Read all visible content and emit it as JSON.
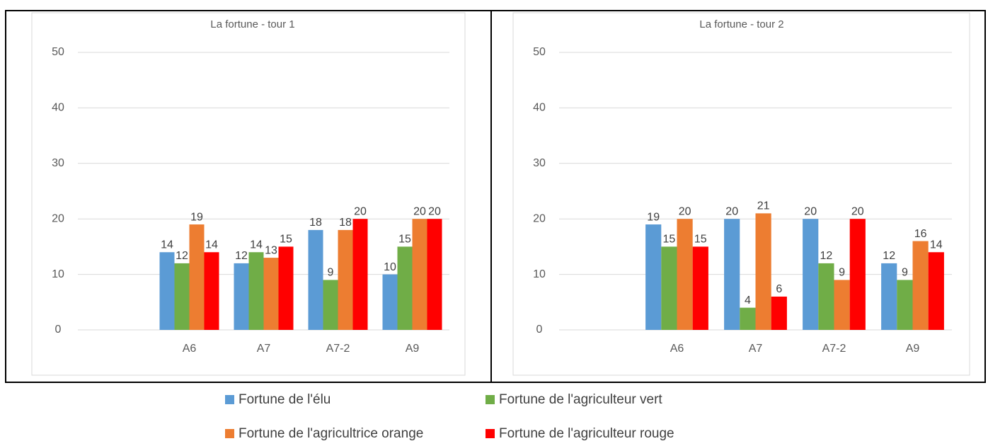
{
  "chart_data": [
    {
      "type": "bar",
      "title": "La fortune - tour 1",
      "categories": [
        null,
        "A6",
        "A7",
        "A7-2",
        "A9"
      ],
      "series": [
        {
          "name": "Fortune de l'élu",
          "color": "#5b9bd5",
          "values": [
            null,
            14,
            12,
            18,
            10
          ]
        },
        {
          "name": "Fortune de l'agriculteur vert",
          "color": "#70ad47",
          "values": [
            null,
            12,
            14,
            9,
            15
          ]
        },
        {
          "name": "Fortune de l'agricultrice orange",
          "color": "#ed7d31",
          "values": [
            null,
            19,
            13,
            18,
            20
          ]
        },
        {
          "name": "Fortune de l'agriculteur rouge",
          "color": "#ff0000",
          "values": [
            null,
            14,
            15,
            20,
            20
          ]
        }
      ],
      "ylim": [
        0,
        50
      ],
      "yticks": [
        0,
        10,
        20,
        30,
        40,
        50
      ],
      "grid": true
    },
    {
      "type": "bar",
      "title": "La fortune - tour 2",
      "categories": [
        null,
        "A6",
        "A7",
        "A7-2",
        "A9"
      ],
      "series": [
        {
          "color": "#5b9bd5",
          "values": [
            null,
            19,
            20,
            20,
            12
          ]
        },
        {
          "color": "#70ad47",
          "values": [
            null,
            15,
            4,
            12,
            9
          ]
        },
        {
          "color": "#ed7d31",
          "values": [
            null,
            20,
            21,
            9,
            16
          ]
        },
        {
          "color": "#ff0000",
          "values": [
            null,
            15,
            6,
            20,
            14
          ]
        }
      ],
      "ylim": [
        0,
        50
      ],
      "yticks": [
        0,
        10,
        20,
        30,
        40,
        50
      ],
      "grid": true
    }
  ]
}
